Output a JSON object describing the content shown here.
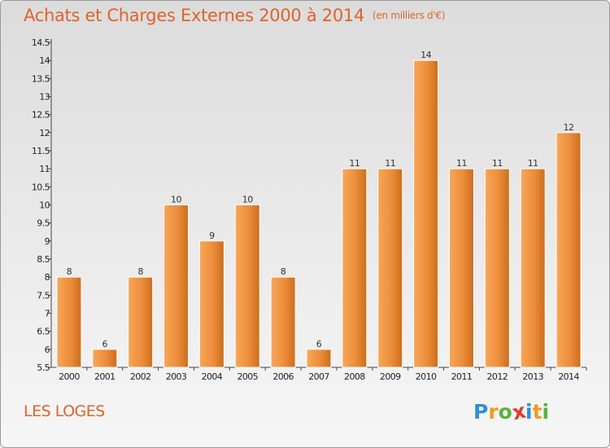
{
  "title": "Achats et Charges Externes 2000 à 2014",
  "unit_note": "(en milliers d'€)",
  "commune": "LES LOGES",
  "logo": {
    "text": "Proxiti",
    "letters": [
      {
        "ch": "P",
        "color": "#2f8fd8"
      },
      {
        "ch": "r",
        "color": "#f29a1e"
      },
      {
        "ch": "o",
        "color": "#58b13c"
      },
      {
        "ch": "x",
        "color": "#e23a2f"
      },
      {
        "ch": "i",
        "color": "#2f8fd8"
      },
      {
        "ch": "t",
        "color": "#f29a1e"
      },
      {
        "ch": "i",
        "color": "#58b13c"
      }
    ]
  },
  "colors": {
    "title": "#e0622a",
    "bar_light": "#f7a75a",
    "bar_dark": "#cc6d1c"
  },
  "chart_data": {
    "type": "bar",
    "categories": [
      "2000",
      "2001",
      "2002",
      "2003",
      "2004",
      "2005",
      "2006",
      "2007",
      "2008",
      "2009",
      "2010",
      "2011",
      "2012",
      "2013",
      "2014"
    ],
    "values": [
      8,
      6,
      8,
      10,
      9,
      10,
      8,
      6,
      11,
      11,
      14,
      11,
      11,
      11,
      12
    ],
    "data_labels": [
      "8",
      "6",
      "8",
      "10",
      "9",
      "10",
      "8",
      "6",
      "11",
      "11",
      "14",
      "11",
      "11",
      "11",
      "12"
    ],
    "ylim": [
      5.5,
      14.5
    ],
    "yticks": [
      "5.5",
      "6",
      "6.5",
      "7",
      "7.5",
      "8",
      "8.5",
      "9",
      "9.5",
      "10",
      "10.5",
      "11",
      "11.5",
      "12",
      "12.5",
      "13",
      "13.5",
      "14",
      "14.5"
    ],
    "grid": false,
    "legend": "none"
  }
}
